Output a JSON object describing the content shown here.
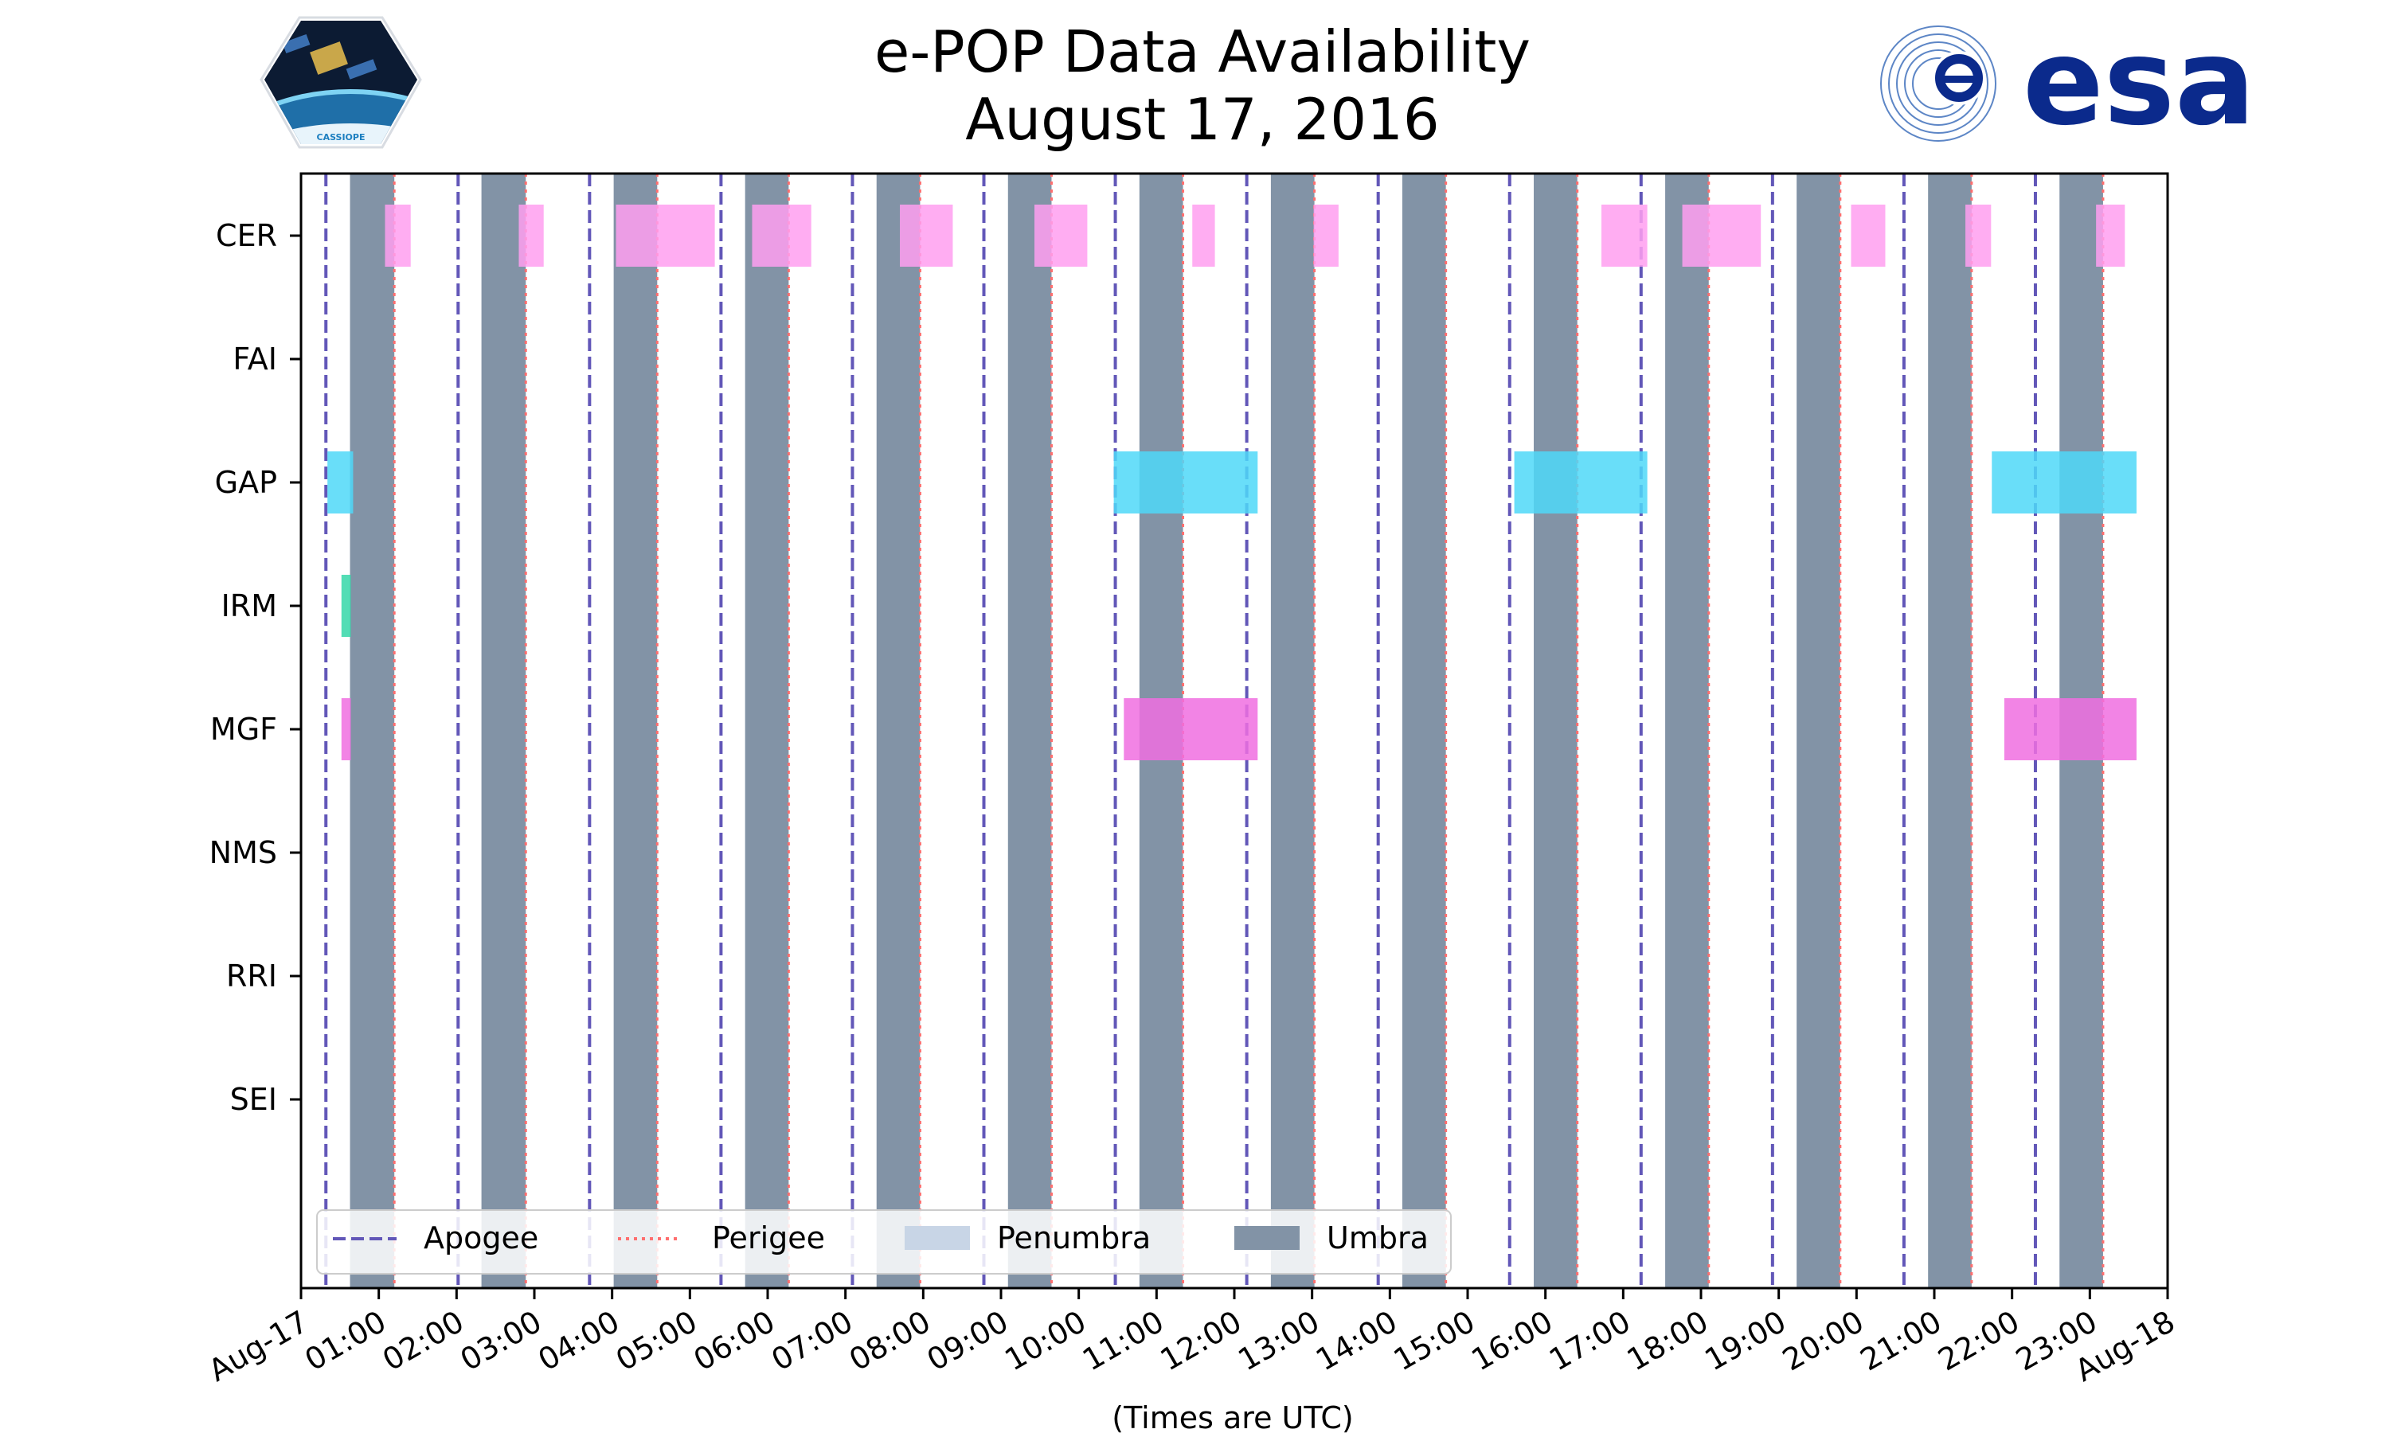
{
  "chart_data": {
    "type": "timeline",
    "title": [
      "e-POP Data Availability",
      "August 17, 2016"
    ],
    "xlabel": "(Times are UTC)",
    "xlim_hours": [
      0,
      24
    ],
    "x_tick_labels": [
      "Aug-17",
      "01:00",
      "02:00",
      "03:00",
      "04:00",
      "05:00",
      "06:00",
      "07:00",
      "08:00",
      "09:00",
      "10:00",
      "11:00",
      "12:00",
      "13:00",
      "14:00",
      "15:00",
      "16:00",
      "17:00",
      "18:00",
      "19:00",
      "20:00",
      "21:00",
      "22:00",
      "23:00",
      "Aug-18"
    ],
    "instruments": [
      "CER",
      "FAI",
      "GAP",
      "IRM",
      "MGF",
      "NMS",
      "RRI",
      "SEI"
    ],
    "apogee_hours": [
      0.32,
      2.02,
      3.71,
      5.4,
      7.09,
      8.78,
      10.47,
      12.16,
      13.85,
      15.54,
      17.23,
      18.92,
      20.61,
      22.3
    ],
    "perigee_hours": [
      1.2,
      2.89,
      4.58,
      6.27,
      7.96,
      9.65,
      11.34,
      13.03,
      14.72,
      16.41,
      18.1,
      19.79,
      21.48,
      23.17
    ],
    "umbra_hours": [
      [
        0.63,
        1.2
      ],
      [
        2.32,
        2.89
      ],
      [
        4.02,
        4.58
      ],
      [
        5.71,
        6.27
      ],
      [
        7.4,
        7.96
      ],
      [
        9.09,
        9.65
      ],
      [
        10.78,
        11.34
      ],
      [
        12.47,
        13.03
      ],
      [
        14.16,
        14.72
      ],
      [
        15.85,
        16.41
      ],
      [
        17.54,
        18.1
      ],
      [
        19.23,
        19.79
      ],
      [
        20.92,
        21.48
      ],
      [
        22.61,
        23.17
      ]
    ],
    "penumbra_hours": [],
    "availability": {
      "CER": [
        [
          1.08,
          1.41
        ],
        [
          2.8,
          3.12
        ],
        [
          4.05,
          5.32
        ],
        [
          5.8,
          6.56
        ],
        [
          7.7,
          8.38
        ],
        [
          9.43,
          10.11
        ],
        [
          11.46,
          11.75
        ],
        [
          13.02,
          13.34
        ],
        [
          16.72,
          17.31
        ],
        [
          17.76,
          18.77
        ],
        [
          19.93,
          20.37
        ],
        [
          21.4,
          21.73
        ],
        [
          23.08,
          23.45
        ]
      ],
      "FAI": [],
      "GAP": [
        [
          0.34,
          0.67
        ],
        [
          10.45,
          12.3
        ],
        [
          15.6,
          17.31
        ],
        [
          21.74,
          23.6
        ]
      ],
      "IRM": [
        [
          0.52,
          0.64
        ]
      ],
      "MGF": [
        [
          0.52,
          0.64
        ],
        [
          10.58,
          12.3
        ],
        [
          21.9,
          23.6
        ]
      ]
    },
    "instrument_colors": {
      "CER": "#ff9ff0",
      "GAP": "#4fd8f8",
      "IRM": "#35d7a8",
      "MGF": "#f06fe0"
    },
    "apogee_color": "#6257b8",
    "perigee_color": "#ff6f6f",
    "umbra_color": "#8293a6",
    "penumbra_color": "#c8d5e6",
    "legend": [
      "Apogee",
      "Perigee",
      "Penumbra",
      "Umbra"
    ]
  },
  "logos": {
    "left_caption": "CASSIOPE",
    "right_text": "esa"
  }
}
